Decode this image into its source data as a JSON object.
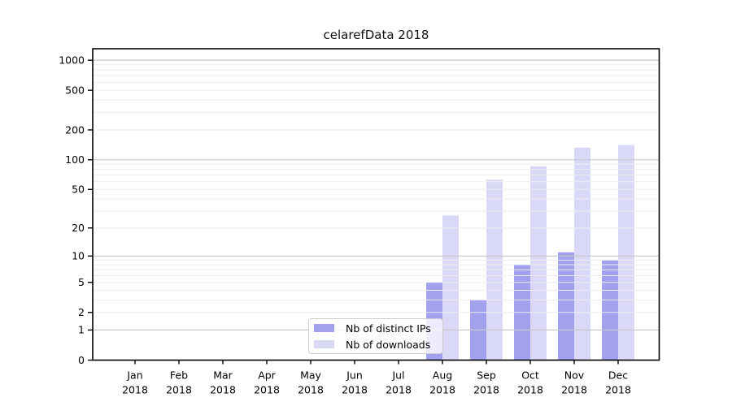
{
  "chart_data": {
    "type": "bar",
    "title": "celarefData 2018",
    "categories": [
      "Jan",
      "Feb",
      "Mar",
      "Apr",
      "May",
      "Jun",
      "Jul",
      "Aug",
      "Sep",
      "Oct",
      "Nov",
      "Dec"
    ],
    "x_year_label": "2018",
    "series": [
      {
        "name": "Nb of distinct IPs",
        "color": "#a1a1ed",
        "values": [
          0,
          0,
          0,
          0,
          0,
          0,
          0,
          5,
          3,
          8,
          11,
          9
        ]
      },
      {
        "name": "Nb of downloads",
        "color": "#d9d9f7",
        "values": [
          0,
          0,
          0,
          0,
          0,
          0,
          0,
          27,
          63,
          86,
          133,
          141
        ]
      }
    ],
    "yscale": "log1p",
    "yticks": [
      0,
      1,
      2,
      5,
      10,
      20,
      50,
      100,
      200,
      500,
      1000
    ],
    "ylim": [
      0,
      1300
    ],
    "grid": "horizontal major+minor, drawn over bars",
    "legend_position": "inside bottom-center",
    "style": {
      "grid_major_color": "#c8c8c8",
      "grid_minor_color": "#ededed",
      "axis_color": "#000000",
      "background": "#ffffff"
    }
  }
}
